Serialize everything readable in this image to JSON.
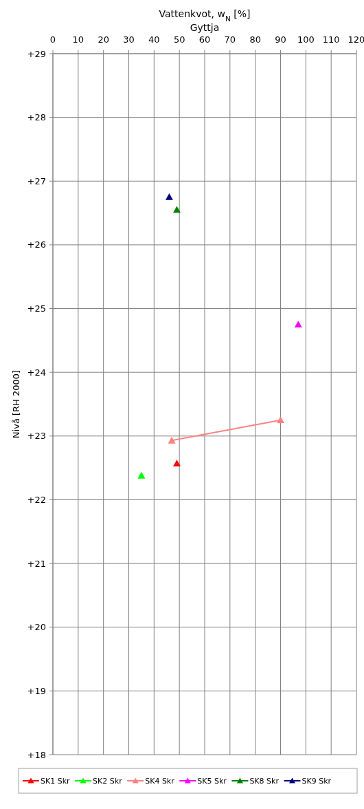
{
  "chart_data": {
    "type": "line",
    "xlabel": "Vattenkvot, w$_{N}$ [%]",
    "title": "Gyttja",
    "ylabel": "Nivå [RH 2000]",
    "xlim": [
      0,
      120
    ],
    "xticks": [
      0,
      10,
      20,
      30,
      40,
      50,
      60,
      70,
      80,
      90,
      100,
      110,
      120
    ],
    "ylim": [
      18,
      29
    ],
    "yticks": [
      {
        "value": 18,
        "label": "+18"
      },
      {
        "value": 19,
        "label": "+19"
      },
      {
        "value": 20,
        "label": "+20"
      },
      {
        "value": 21,
        "label": "+21"
      },
      {
        "value": 22,
        "label": "+22"
      },
      {
        "value": 23,
        "label": "+23"
      },
      {
        "value": 24,
        "label": "+24"
      },
      {
        "value": 25,
        "label": "+25"
      },
      {
        "value": 26,
        "label": "+26"
      },
      {
        "value": 27,
        "label": "+27"
      },
      {
        "value": 28,
        "label": "+28"
      },
      {
        "value": 29,
        "label": "+29"
      }
    ],
    "grid": true,
    "legend": "bottom",
    "marker": "triangle",
    "line_style": "solid",
    "series": [
      {
        "name": "SK1 Skr",
        "color": "#ff0000",
        "x": [
          49
        ],
        "values": [
          22.57
        ]
      },
      {
        "name": "SK2 Skr",
        "color": "#00ff00",
        "x": [
          35
        ],
        "values": [
          22.38
        ]
      },
      {
        "name": "SK4 Skr",
        "color": "#ff8080",
        "x": [
          47,
          90
        ],
        "values": [
          22.93,
          23.25
        ]
      },
      {
        "name": "SK5 Skr",
        "color": "#ff00ff",
        "x": [
          97
        ],
        "values": [
          24.75
        ]
      },
      {
        "name": "SK8 Skr",
        "color": "#008000",
        "x": [
          49
        ],
        "values": [
          26.55
        ]
      },
      {
        "name": "SK9 Skr",
        "color": "#000080",
        "x": [
          46
        ],
        "values": [
          26.75
        ]
      }
    ]
  }
}
